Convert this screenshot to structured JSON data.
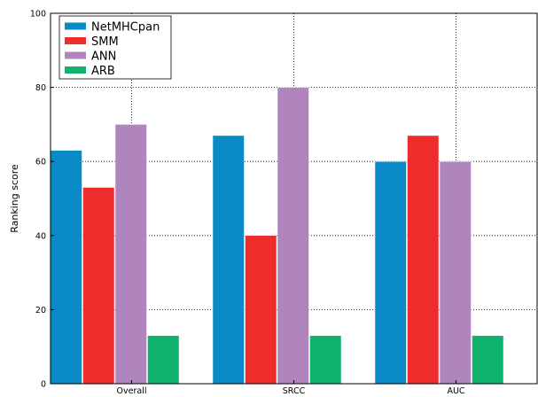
{
  "chart_data": {
    "type": "bar",
    "categories": [
      "Overall",
      "SRCC",
      "AUC"
    ],
    "series": [
      {
        "name": "NetMHCpan",
        "color": "#0a8ac6",
        "values": [
          63,
          67,
          60
        ]
      },
      {
        "name": "SMM",
        "color": "#ee2c2c",
        "values": [
          53,
          40,
          67
        ]
      },
      {
        "name": "ANN",
        "color": "#b085be",
        "values": [
          70,
          80,
          60
        ]
      },
      {
        "name": "ARB",
        "color": "#0fb36e",
        "values": [
          13,
          13,
          13
        ]
      }
    ],
    "title": "",
    "xlabel": "",
    "ylabel": "Ranking score",
    "ylim": [
      0,
      100
    ],
    "yticks": [
      0,
      20,
      40,
      60,
      80,
      100
    ],
    "grid": true,
    "grid_style": "dotted",
    "legend_position": "top-left"
  }
}
